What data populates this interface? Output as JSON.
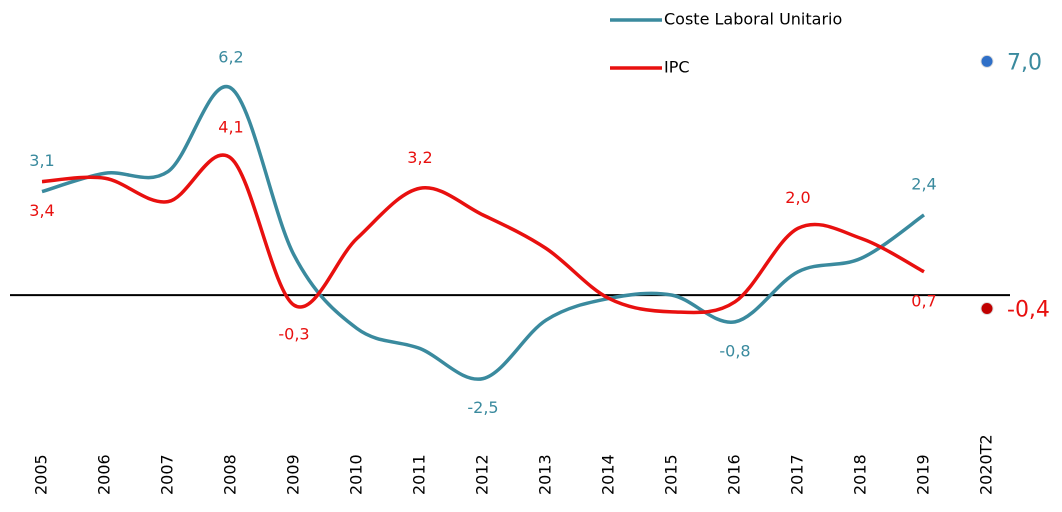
{
  "chart_data": {
    "type": "line",
    "categories": [
      "2005",
      "2006",
      "2007",
      "2008",
      "2009",
      "2010",
      "2011",
      "2012",
      "2013",
      "2014",
      "2015",
      "2016",
      "2017",
      "2018",
      "2019",
      "2020T2"
    ],
    "ylim": [
      -3.5,
      8
    ],
    "series": [
      {
        "name": "Coste Laboral Unitario",
        "color": "#3a8a9e",
        "values": [
          3.1,
          3.65,
          3.7,
          6.2,
          1.2,
          -1.0,
          -1.6,
          -2.5,
          -0.75,
          -0.1,
          0.0,
          -0.8,
          0.7,
          1.1,
          2.4,
          null
        ],
        "value_labels": [
          "3,1",
          null,
          null,
          "6,2",
          null,
          null,
          null,
          "-2,5",
          null,
          null,
          null,
          "-0,8",
          null,
          null,
          "2,4",
          null
        ],
        "latest": 7.0,
        "latest_label": "7,0",
        "latest_color": "#2f6fc7"
      },
      {
        "name": "IPC",
        "color": "#e8100f",
        "values": [
          3.4,
          3.5,
          2.8,
          4.1,
          -0.3,
          1.7,
          3.2,
          2.4,
          1.4,
          -0.1,
          -0.5,
          -0.2,
          2.0,
          1.7,
          0.7,
          null
        ],
        "value_labels": [
          "3,4",
          null,
          null,
          "4,1",
          "-0,3",
          null,
          "3,2",
          null,
          null,
          null,
          null,
          null,
          "2,0",
          null,
          "0,7",
          null
        ],
        "latest": -0.4,
        "latest_label": "-0,4",
        "latest_color": "#c00000"
      }
    ]
  }
}
